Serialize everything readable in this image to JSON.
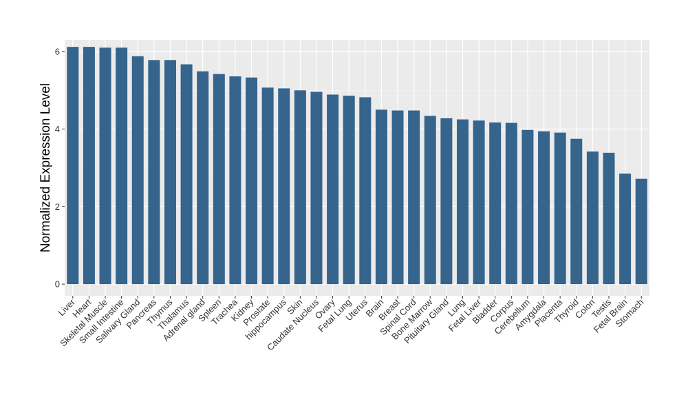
{
  "chart_data": {
    "type": "bar",
    "title": "",
    "xlabel": "",
    "ylabel": "Normalized Expression Level",
    "ylim": [
      -0.3,
      6.3
    ],
    "yticks": [
      0,
      2,
      4,
      6
    ],
    "grid": true,
    "bar_color": "#35648c",
    "panel_color": "#ebebeb",
    "categories": [
      "Liver",
      "Heart",
      "Skeletal Muscle",
      "Small Intestine",
      "Salivary Gland",
      "Pancreas",
      "Thymus",
      "Thalamus",
      "Adrenal gland",
      "Spleen",
      "Trachea",
      "Kidney",
      "Prostate",
      "hippocampus",
      "Skin",
      "Caudate Nucleus",
      "Ovary",
      "Fetal Lung",
      "Uterus",
      "Brain",
      "Breast",
      "Spinal Cord",
      "Bone Marrow",
      "Pituitary Gland",
      "Lung",
      "Fetal Liver",
      "Bladder",
      "Corpus",
      "Cerebellum",
      "Amygdala",
      "Placenta",
      "Thyroid",
      "Colon",
      "Testis",
      "Fetal Brain",
      "Stomach"
    ],
    "values": [
      6.12,
      6.12,
      6.1,
      6.1,
      5.88,
      5.78,
      5.78,
      5.67,
      5.49,
      5.42,
      5.36,
      5.33,
      5.07,
      5.05,
      5.0,
      4.96,
      4.89,
      4.86,
      4.82,
      4.5,
      4.48,
      4.48,
      4.34,
      4.28,
      4.25,
      4.22,
      4.17,
      4.16,
      3.98,
      3.94,
      3.91,
      3.75,
      3.42,
      3.39,
      2.85,
      2.72
    ]
  }
}
